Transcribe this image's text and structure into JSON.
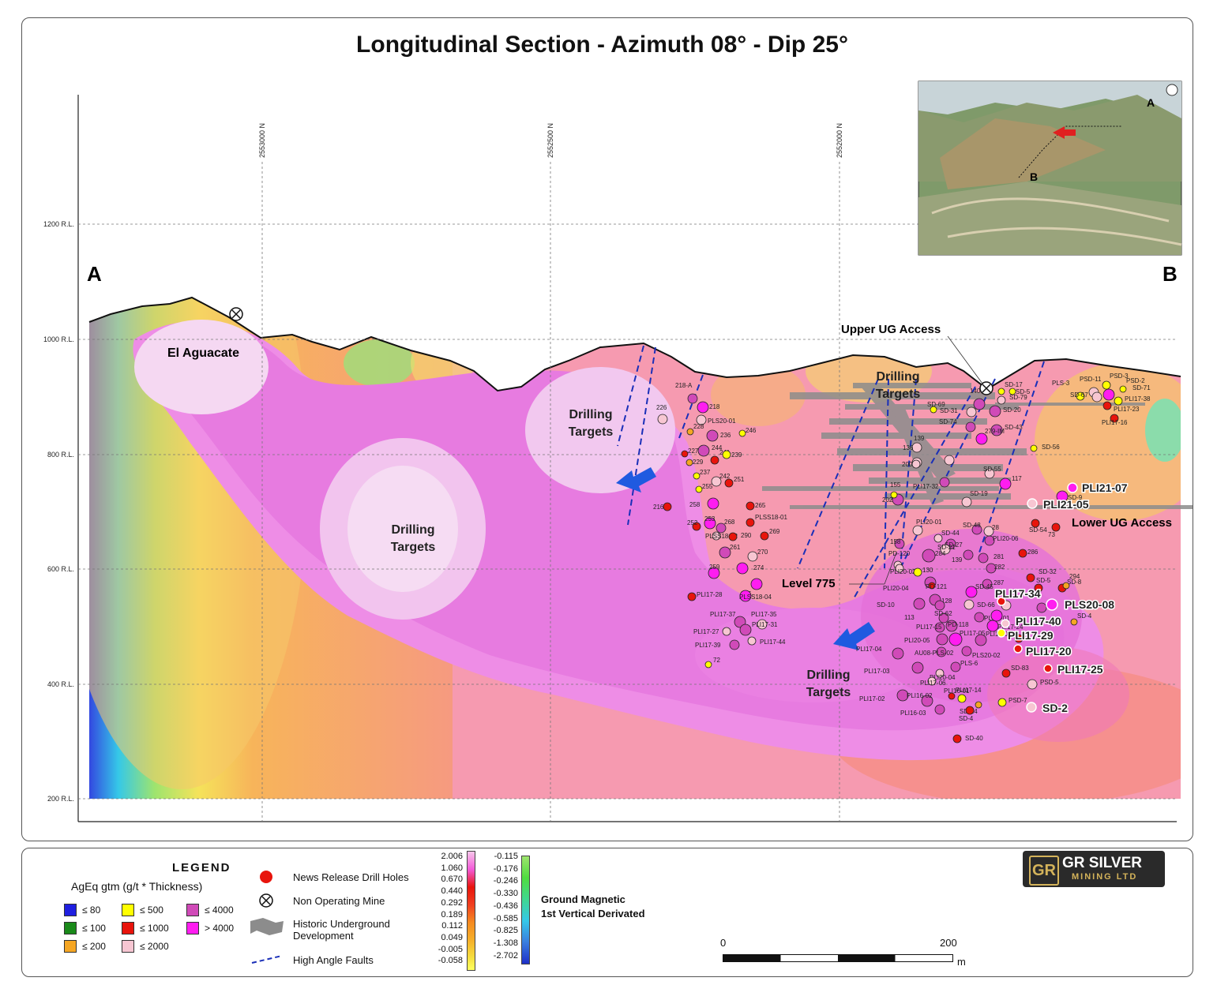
{
  "title": "Longitudinal Section - Azimuth 08° - Dip 25°",
  "section_ends": {
    "left": "A",
    "right": "B"
  },
  "inset": {
    "label_a": "A",
    "label_b": "B"
  },
  "northings": [
    "2553000 N",
    "2552500 N",
    "2552000 N"
  ],
  "elevations": [
    "1200 R.L.",
    "1000 R.L.",
    "800 R.L.",
    "600 R.L.",
    "400 R.L.",
    "200 R.L."
  ],
  "annotations": {
    "el_aguacate": "El Aguacate",
    "upper_ug_access": "Upper UG Access",
    "lower_ug_access": "Lower UG Access",
    "level_775": "Level 775",
    "drilling_targets": "Drilling Targets",
    "drilling": "Drilling",
    "targets": "Targets"
  },
  "drill_holes_large": [
    "PLI21-07",
    "PLI21-05",
    "PLI17-34",
    "PLS20-08",
    "PLI17-40",
    "PLI17-29",
    "PLI17-20",
    "PLI17-25",
    "SD-2"
  ],
  "drill_holes_small": [
    "218-A",
    "218",
    "226",
    "PLS20-01",
    "228",
    "236",
    "246",
    "227",
    "244",
    "241",
    "229",
    "239",
    "237",
    "242",
    "251",
    "255",
    "216",
    "258",
    "265",
    "PLSS18-01",
    "252",
    "253",
    "268",
    "PLSS18-02",
    "290",
    "269",
    "261",
    "270",
    "259",
    "274",
    "215",
    "PLSS18-04",
    "PLI17-28",
    "PLI17-37",
    "PLI17-35",
    "PLI17-27",
    "PLI17-31",
    "PLI17-39",
    "PLI17-44",
    "72",
    "140",
    "SD-69",
    "SD-31",
    "SD-74",
    "139",
    "136",
    "200",
    "202",
    "155",
    "158",
    "PLI20-01",
    "PLI20-06",
    "PD-120",
    "PLI20-02",
    "130",
    "PLI20-04",
    "PD-121",
    "SD-10",
    "128",
    "113",
    "SD-62",
    "PLI17-15",
    "PD-118",
    "PLI20-05",
    "AU08-PLS-02",
    "PLI17-05",
    "PLI17-04",
    "PLI17-03",
    "PLI20-04",
    "PLI17-06",
    "PLI17-02",
    "PLI16-02",
    "PLI16-03",
    "PLI16-01",
    "PLI17-14",
    "SD-14",
    "SD-4",
    "SD-40",
    "SD-17",
    "SD-5",
    "SD-79",
    "SD-20",
    "SD-43",
    "SD-56",
    "279-IM",
    "SD-55",
    "117",
    "SD-19",
    "SD-9",
    "SD-54",
    "73",
    "28",
    "SD-48",
    "SD-44",
    "SD-27",
    "SD-21",
    "284",
    "139",
    "281",
    "282",
    "286",
    "287",
    "SD-32",
    "SD-5",
    "SD-8",
    "294",
    "SD-45",
    "SD-66",
    "PLI17-01",
    "SD-4",
    "PLI17-24",
    "PLI16-04",
    "PLS20-02",
    "PLS-6",
    "SD-83",
    "PSD-5",
    "PSD-7",
    "PLS-3",
    "PSD-3",
    "PSD-2",
    "PSD-11",
    "SD-67",
    "SD-71",
    "PLI17-38",
    "PLI17-23",
    "PLI17-16",
    "PLI17-32"
  ],
  "legend": {
    "title": "LEGEND",
    "subtitle": "AgEq gtm (g/t * Thickness)",
    "classes": [
      {
        "label": "≤ 80",
        "color": "#1f1fe0"
      },
      {
        "label": "≤ 100",
        "color": "#1a8a1a"
      },
      {
        "label": "≤ 200",
        "color": "#f5a623"
      },
      {
        "label": "≤ 500",
        "color": "#ffff00"
      },
      {
        "label": "≤ 1000",
        "color": "#e8140c"
      },
      {
        "label": "≤ 2000",
        "color": "#f7c6d2"
      },
      {
        "label": "≤ 4000",
        "color": "#d04ab8"
      },
      {
        "label": "> 4000",
        "color": "#ff1df0"
      }
    ],
    "symbols": {
      "news_release": "News Release Drill Holes",
      "non_operating_mine": "Non Operating Mine",
      "historic_ug": "Historic Underground Development",
      "faults": "High Angle Faults"
    },
    "colorbar_left": [
      "2.006",
      "1.060",
      "0.670",
      "0.440",
      "0.292",
      "0.189",
      "0.112",
      "0.049",
      "-0.005",
      "-0.058"
    ],
    "colorbar_right": [
      "-0.115",
      "-0.176",
      "-0.246",
      "-0.330",
      "-0.436",
      "-0.585",
      "-0.825",
      "-1.308",
      "-2.702"
    ],
    "magnetic_label_1": "Ground Magnetic",
    "magnetic_label_2": "1st Vertical Derivated",
    "scale_min": "0",
    "scale_max": "200",
    "scale_unit": "m"
  },
  "logo": {
    "line1": "GR SILVER",
    "line2": "MINING LTD"
  }
}
